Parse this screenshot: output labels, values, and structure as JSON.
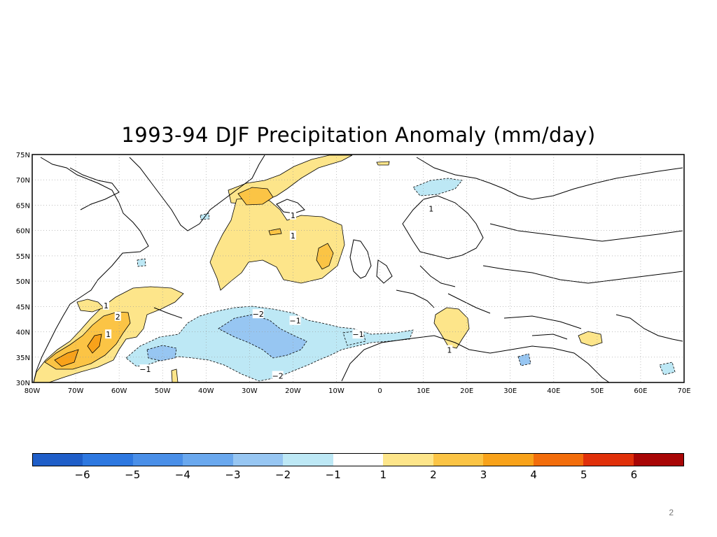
{
  "title": "1993-94 DJF Precipitation Anomaly (mm/day)",
  "map": {
    "lat_labels": [
      "75N",
      "70N",
      "65N",
      "60N",
      "55N",
      "50N",
      "45N",
      "40N",
      "35N",
      "30N"
    ],
    "lon_labels": [
      "80W",
      "70W",
      "60W",
      "50W",
      "40W",
      "30W",
      "20W",
      "10W",
      "0",
      "10E",
      "20E",
      "30E",
      "40E",
      "50E",
      "60E",
      "70E"
    ],
    "contour_labels": [
      {
        "text": "1",
        "lon": -20,
        "lat": 63
      },
      {
        "text": "1",
        "lon": -20,
        "lat": 59
      },
      {
        "text": "1",
        "lon": -63,
        "lat": 45.2
      },
      {
        "text": "2",
        "lon": -60.3,
        "lat": 43
      },
      {
        "text": "1",
        "lon": -62.5,
        "lat": 39.5
      },
      {
        "text": "-2",
        "lon": -28,
        "lat": 43.5
      },
      {
        "text": "-1",
        "lon": -19.5,
        "lat": 42.2
      },
      {
        "text": "-1",
        "lon": -5,
        "lat": 39.5
      },
      {
        "text": "-1",
        "lon": -54,
        "lat": 32.6
      },
      {
        "text": "-2",
        "lon": -23.5,
        "lat": 31.3
      },
      {
        "text": "1",
        "lon": 11.8,
        "lat": 64.3
      },
      {
        "text": "1",
        "lon": 16,
        "lat": 36.4
      }
    ]
  },
  "colorbar": {
    "colors": [
      "#1f5ec8",
      "#2e78e0",
      "#4a8fe8",
      "#6aa8ee",
      "#97c6f2",
      "#bde8f5",
      "#ffffff",
      "#fde58a",
      "#fbc445",
      "#f8a21a",
      "#f26d0c",
      "#e0300a",
      "#a80606"
    ],
    "tick_labels": [
      "-6",
      "-5",
      "-4",
      "-3",
      "-2",
      "-1",
      "1",
      "2",
      "3",
      "4",
      "5",
      "6"
    ]
  },
  "slide_number": "2"
}
